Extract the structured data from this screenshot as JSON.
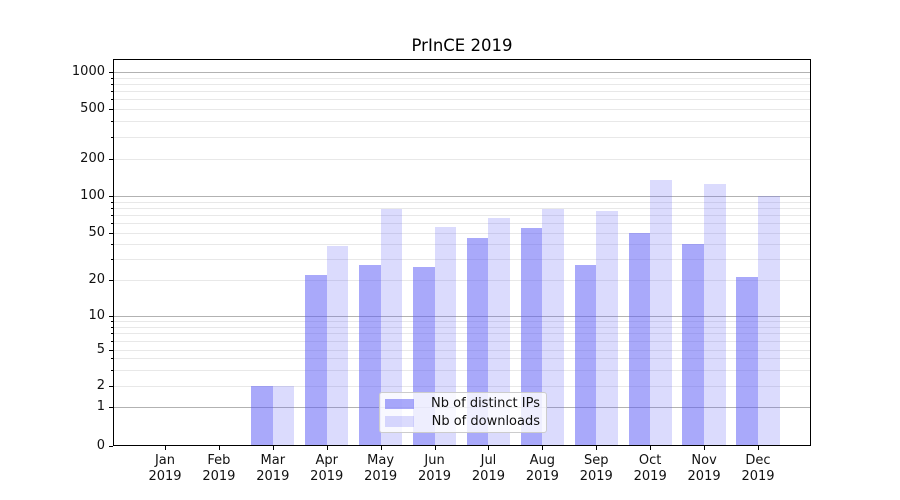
{
  "chart_data": {
    "type": "bar",
    "title": "PrInCE 2019",
    "categories": [
      "Jan",
      "Feb",
      "Mar",
      "Apr",
      "May",
      "Jun",
      "Jul",
      "Aug",
      "Sep",
      "Oct",
      "Nov",
      "Dec"
    ],
    "category_year_suffix": "2019",
    "series": [
      {
        "name": "Nb of distinct IPs",
        "color": "rgba(90,90,245,0.52)",
        "values": [
          0,
          0,
          2,
          22,
          27,
          26,
          45,
          55,
          27,
          50,
          40,
          21
        ]
      },
      {
        "name": "Nb of downloads",
        "color": "rgba(90,90,245,0.22)",
        "values": [
          0,
          0,
          2,
          39,
          78,
          56,
          66,
          78,
          75,
          135,
          125,
          100
        ]
      }
    ],
    "xlabel": "",
    "ylabel": "",
    "yscale": "symlog-like",
    "yticks": [
      0,
      1,
      2,
      5,
      10,
      20,
      50,
      100,
      200,
      500,
      1000
    ],
    "major_gridlines": [
      1,
      10,
      100,
      1000
    ],
    "ylim": [
      0,
      1250
    ],
    "grid": "horizontal major+minor",
    "legend_position": "lower center",
    "accent_color": "#5a5af5"
  }
}
